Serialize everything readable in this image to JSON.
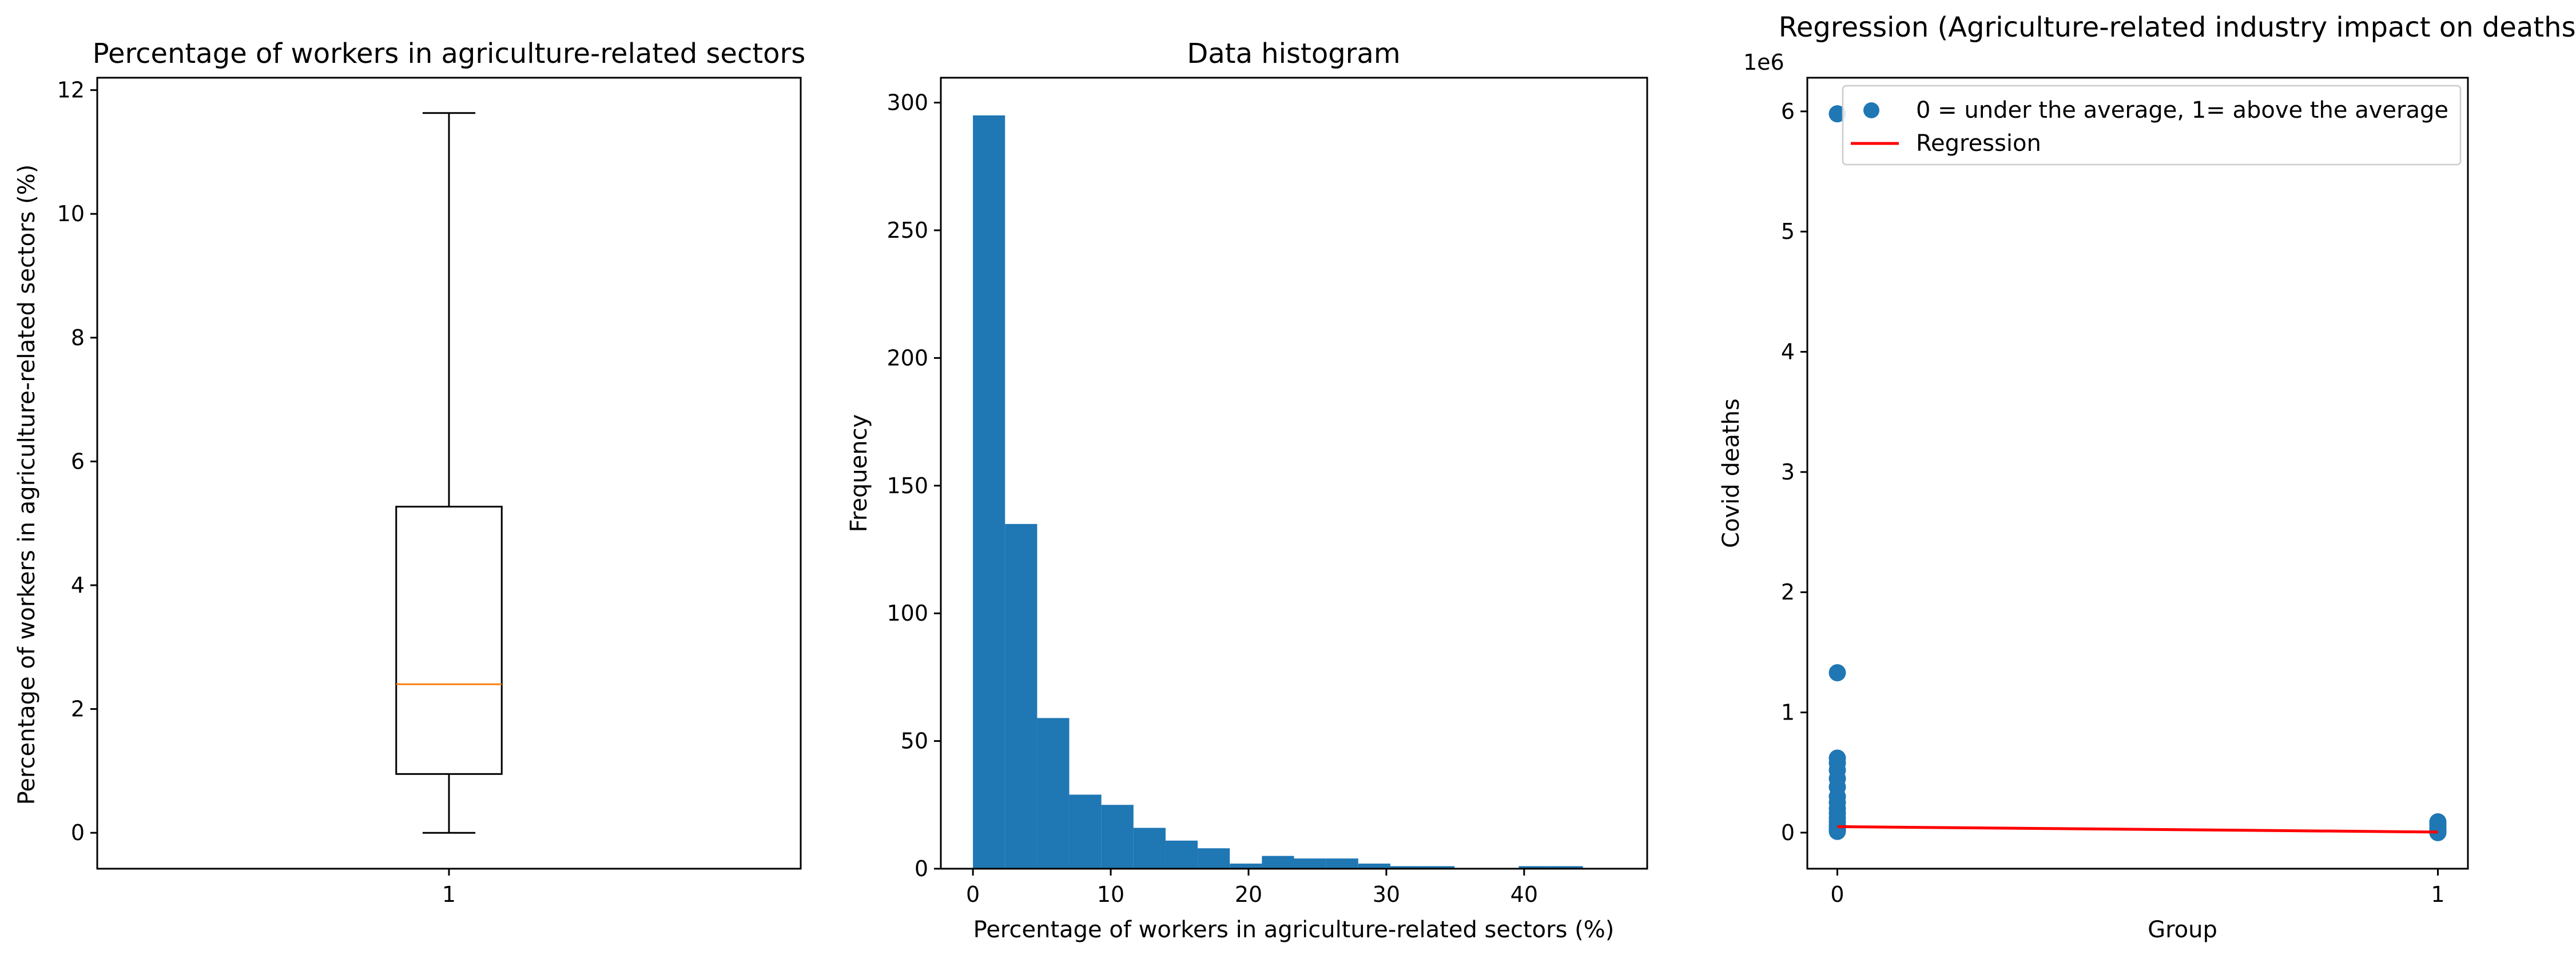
{
  "colors": {
    "bar": "#1f77b4",
    "scatter": "#1f77b4",
    "median": "#ff7f0e",
    "regression": "#ff0000",
    "axes": "#000000",
    "background": "#ffffff"
  },
  "chart_data": [
    {
      "type": "box",
      "title": "Percentage of workers in agriculture-related sectors",
      "xlabel": "",
      "ylabel": "Percentage of workers in agriculture-related sectors (%)",
      "categories": [
        "1"
      ],
      "stats": {
        "min": 0.0,
        "q1": 0.95,
        "median": 2.4,
        "q3": 5.27,
        "max": 11.63
      },
      "xlim": [
        0.5,
        1.5
      ],
      "ylim": [
        -0.58,
        12.2
      ],
      "yticks": [
        0,
        2,
        4,
        6,
        8,
        10,
        12
      ],
      "xticks": [
        1
      ],
      "grid": false
    },
    {
      "type": "bar",
      "title": "Data histogram",
      "xlabel": "Percentage of workers in agriculture-related sectors (%)",
      "ylabel": "Frequency",
      "bin_edges": [
        0,
        2.33,
        4.66,
        6.99,
        9.32,
        11.65,
        13.98,
        16.31,
        18.64,
        20.97,
        23.3,
        25.63,
        27.96,
        30.29,
        32.62,
        34.95,
        37.28,
        39.61,
        41.94,
        44.27,
        46.6
      ],
      "values": [
        295,
        135,
        59,
        29,
        25,
        16,
        11,
        8,
        2,
        5,
        4,
        4,
        2,
        1,
        1,
        0,
        0,
        1,
        1,
        0
      ],
      "xlim": [
        -2.33,
        48.93
      ],
      "ylim": [
        0,
        309.75
      ],
      "xticks": [
        0,
        10,
        20,
        30,
        40
      ],
      "yticks": [
        0,
        50,
        100,
        150,
        200,
        250,
        300
      ],
      "grid": false
    },
    {
      "type": "scatter",
      "title": "Regression (Agriculture-related industry impact on deaths)",
      "xlabel": "Group",
      "ylabel": "Covid deaths",
      "y_offset_label": "1e6",
      "series": [
        {
          "name": "0 = under the average, 1= above the average",
          "kind": "scatter",
          "points": [
            [
              0,
              5.98
            ],
            [
              0,
              1.33
            ],
            [
              0,
              0.62
            ],
            [
              0,
              0.58
            ],
            [
              0,
              0.52
            ],
            [
              0,
              0.45
            ],
            [
              0,
              0.38
            ],
            [
              0,
              0.3
            ],
            [
              0,
              0.25
            ],
            [
              0,
              0.2
            ],
            [
              0,
              0.16
            ],
            [
              0,
              0.12
            ],
            [
              0,
              0.09
            ],
            [
              0,
              0.06
            ],
            [
              0,
              0.04
            ],
            [
              0,
              0.02
            ],
            [
              0,
              0.01
            ],
            [
              1,
              0.09
            ],
            [
              1,
              0.07
            ],
            [
              1,
              0.05
            ],
            [
              1,
              0.03
            ],
            [
              1,
              0.02
            ],
            [
              1,
              0.01
            ],
            [
              1,
              0.0
            ]
          ]
        },
        {
          "name": "Regression",
          "kind": "line",
          "points": [
            [
              0,
              0.05
            ],
            [
              1,
              0.005
            ]
          ]
        }
      ],
      "xlim": [
        -0.05,
        1.05
      ],
      "ylim": [
        -0.3,
        6.28
      ],
      "xticks": [
        0,
        1
      ],
      "yticks": [
        0,
        1,
        2,
        3,
        4,
        5,
        6
      ],
      "legend_position": "top-right",
      "grid": false
    }
  ]
}
